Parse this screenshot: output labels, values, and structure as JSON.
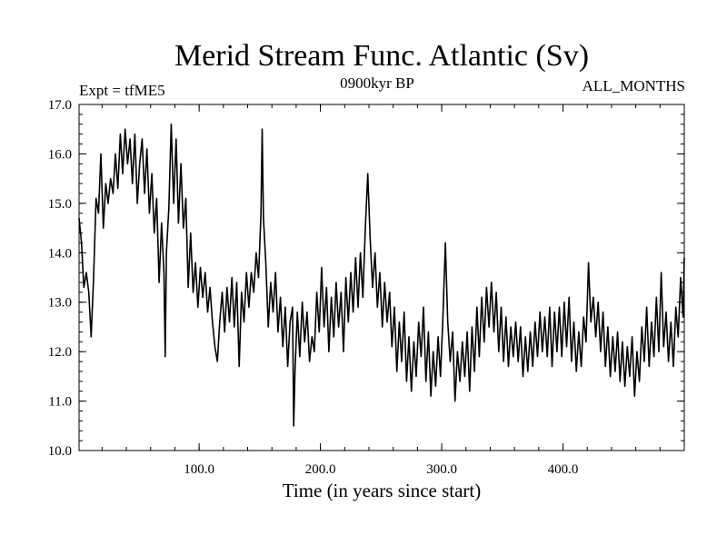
{
  "chart_data": {
    "type": "line",
    "title": "Merid Stream Func. Atlantic (Sv)",
    "subtitle_left": "Expt = tfME5",
    "subtitle_center": "0900kyr BP",
    "subtitle_right": "ALL_MONTHS",
    "xlabel": "Time (in years since start)",
    "ylabel": "",
    "xlim": [
      1,
      500
    ],
    "ylim": [
      10.0,
      17.0
    ],
    "x_ticks": [
      100,
      200,
      300,
      400
    ],
    "x_tick_labels": [
      "100.0",
      "200.0",
      "300.0",
      "400.0"
    ],
    "y_ticks": [
      10,
      11,
      12,
      13,
      14,
      15,
      16,
      17
    ],
    "y_tick_labels": [
      "10.0",
      "11.0",
      "12.0",
      "13.0",
      "14.0",
      "15.0",
      "16.0",
      "17.0"
    ],
    "grid": false,
    "line_color": "#000000",
    "series": [
      {
        "name": "Merid Stream Func. Atlantic",
        "control_points": [
          [
            1,
            14.7
          ],
          [
            3,
            14.2
          ],
          [
            5,
            13.3
          ],
          [
            7,
            13.6
          ],
          [
            9,
            13.2
          ],
          [
            11,
            12.3
          ],
          [
            13,
            13.5
          ],
          [
            15,
            15.1
          ],
          [
            17,
            14.8
          ],
          [
            19,
            16.0
          ],
          [
            21,
            14.5
          ],
          [
            23,
            15.4
          ],
          [
            25,
            15.0
          ],
          [
            27,
            15.5
          ],
          [
            29,
            15.2
          ],
          [
            31,
            16.0
          ],
          [
            33,
            15.3
          ],
          [
            35,
            16.4
          ],
          [
            37,
            15.6
          ],
          [
            39,
            16.5
          ],
          [
            41,
            15.8
          ],
          [
            43,
            16.3
          ],
          [
            45,
            15.4
          ],
          [
            47,
            16.4
          ],
          [
            49,
            15.0
          ],
          [
            51,
            15.8
          ],
          [
            53,
            16.3
          ],
          [
            55,
            15.2
          ],
          [
            57,
            16.1
          ],
          [
            59,
            14.8
          ],
          [
            61,
            15.6
          ],
          [
            63,
            14.4
          ],
          [
            65,
            15.1
          ],
          [
            67,
            13.4
          ],
          [
            69,
            14.6
          ],
          [
            71,
            13.6
          ],
          [
            72,
            11.9
          ],
          [
            73,
            14.0
          ],
          [
            75,
            14.9
          ],
          [
            77,
            16.6
          ],
          [
            79,
            15.0
          ],
          [
            81,
            16.3
          ],
          [
            83,
            14.6
          ],
          [
            85,
            15.8
          ],
          [
            87,
            14.5
          ],
          [
            89,
            15.1
          ],
          [
            91,
            13.3
          ],
          [
            93,
            14.4
          ],
          [
            95,
            13.2
          ],
          [
            97,
            13.8
          ],
          [
            99,
            12.9
          ],
          [
            101,
            13.7
          ],
          [
            103,
            13.1
          ],
          [
            105,
            13.6
          ],
          [
            107,
            12.8
          ],
          [
            109,
            13.3
          ],
          [
            111,
            12.6
          ],
          [
            113,
            12.1
          ],
          [
            115,
            11.8
          ],
          [
            117,
            12.6
          ],
          [
            119,
            13.2
          ],
          [
            121,
            12.4
          ],
          [
            123,
            13.3
          ],
          [
            125,
            12.6
          ],
          [
            127,
            13.5
          ],
          [
            129,
            12.5
          ],
          [
            131,
            13.4
          ],
          [
            133,
            11.7
          ],
          [
            135,
            13.2
          ],
          [
            137,
            12.6
          ],
          [
            139,
            13.6
          ],
          [
            141,
            12.9
          ],
          [
            143,
            13.6
          ],
          [
            145,
            13.2
          ],
          [
            147,
            14.0
          ],
          [
            149,
            13.5
          ],
          [
            151,
            14.8
          ],
          [
            152,
            16.5
          ],
          [
            153,
            14.7
          ],
          [
            155,
            13.8
          ],
          [
            157,
            12.5
          ],
          [
            159,
            13.4
          ],
          [
            161,
            12.8
          ],
          [
            163,
            13.6
          ],
          [
            165,
            12.4
          ],
          [
            167,
            13.1
          ],
          [
            169,
            12.1
          ],
          [
            171,
            12.9
          ],
          [
            173,
            11.7
          ],
          [
            175,
            12.6
          ],
          [
            177,
            12.9
          ],
          [
            178,
            10.5
          ],
          [
            179,
            11.6
          ],
          [
            181,
            12.8
          ],
          [
            183,
            11.9
          ],
          [
            185,
            13.0
          ],
          [
            187,
            12.2
          ],
          [
            189,
            12.8
          ],
          [
            191,
            11.8
          ],
          [
            193,
            12.3
          ],
          [
            195,
            12.0
          ],
          [
            197,
            13.2
          ],
          [
            199,
            12.4
          ],
          [
            201,
            13.7
          ],
          [
            203,
            12.5
          ],
          [
            205,
            13.3
          ],
          [
            207,
            12.0
          ],
          [
            209,
            13.1
          ],
          [
            211,
            12.3
          ],
          [
            213,
            13.4
          ],
          [
            215,
            12.5
          ],
          [
            217,
            13.2
          ],
          [
            219,
            12.0
          ],
          [
            221,
            13.5
          ],
          [
            223,
            12.6
          ],
          [
            225,
            13.6
          ],
          [
            227,
            12.8
          ],
          [
            229,
            13.9
          ],
          [
            231,
            12.9
          ],
          [
            233,
            14.0
          ],
          [
            235,
            13.1
          ],
          [
            237,
            14.5
          ],
          [
            239,
            15.6
          ],
          [
            241,
            14.3
          ],
          [
            243,
            13.3
          ],
          [
            245,
            14.0
          ],
          [
            247,
            12.9
          ],
          [
            249,
            13.6
          ],
          [
            251,
            12.5
          ],
          [
            253,
            13.4
          ],
          [
            255,
            12.6
          ],
          [
            257,
            13.2
          ],
          [
            259,
            12.1
          ],
          [
            261,
            12.9
          ],
          [
            263,
            11.6
          ],
          [
            265,
            12.6
          ],
          [
            267,
            11.8
          ],
          [
            269,
            12.8
          ],
          [
            271,
            11.4
          ],
          [
            273,
            12.3
          ],
          [
            275,
            11.2
          ],
          [
            277,
            12.2
          ],
          [
            279,
            11.5
          ],
          [
            281,
            12.6
          ],
          [
            283,
            11.9
          ],
          [
            285,
            12.9
          ],
          [
            287,
            11.4
          ],
          [
            289,
            12.4
          ],
          [
            291,
            11.1
          ],
          [
            293,
            12.0
          ],
          [
            295,
            11.3
          ],
          [
            297,
            12.3
          ],
          [
            299,
            11.5
          ],
          [
            301,
            12.7
          ],
          [
            303,
            14.2
          ],
          [
            305,
            12.6
          ],
          [
            307,
            11.8
          ],
          [
            309,
            12.4
          ],
          [
            311,
            11.0
          ],
          [
            313,
            12.0
          ],
          [
            315,
            11.4
          ],
          [
            317,
            12.2
          ],
          [
            319,
            11.5
          ],
          [
            321,
            12.4
          ],
          [
            323,
            11.2
          ],
          [
            325,
            12.5
          ],
          [
            327,
            11.6
          ],
          [
            329,
            12.9
          ],
          [
            331,
            11.9
          ],
          [
            333,
            13.1
          ],
          [
            335,
            12.2
          ],
          [
            337,
            13.3
          ],
          [
            339,
            12.5
          ],
          [
            341,
            13.4
          ],
          [
            343,
            12.4
          ],
          [
            345,
            13.2
          ],
          [
            347,
            12.0
          ],
          [
            349,
            12.9
          ],
          [
            351,
            11.8
          ],
          [
            353,
            12.7
          ],
          [
            355,
            11.7
          ],
          [
            357,
            12.5
          ],
          [
            359,
            11.9
          ],
          [
            361,
            12.6
          ],
          [
            363,
            11.8
          ],
          [
            365,
            12.5
          ],
          [
            367,
            11.5
          ],
          [
            369,
            12.3
          ],
          [
            371,
            11.6
          ],
          [
            373,
            12.4
          ],
          [
            375,
            11.7
          ],
          [
            377,
            12.6
          ],
          [
            379,
            11.9
          ],
          [
            381,
            12.8
          ],
          [
            383,
            12.0
          ],
          [
            385,
            12.7
          ],
          [
            387,
            11.9
          ],
          [
            389,
            12.9
          ],
          [
            391,
            11.7
          ],
          [
            393,
            12.8
          ],
          [
            395,
            12.0
          ],
          [
            397,
            12.9
          ],
          [
            399,
            11.9
          ],
          [
            401,
            13.0
          ],
          [
            403,
            12.1
          ],
          [
            405,
            13.1
          ],
          [
            407,
            11.8
          ],
          [
            409,
            12.6
          ],
          [
            411,
            11.6
          ],
          [
            413,
            12.4
          ],
          [
            415,
            11.7
          ],
          [
            417,
            12.7
          ],
          [
            419,
            12.2
          ],
          [
            421,
            13.8
          ],
          [
            423,
            12.6
          ],
          [
            425,
            13.1
          ],
          [
            427,
            12.3
          ],
          [
            429,
            13.0
          ],
          [
            431,
            12.0
          ],
          [
            433,
            12.8
          ],
          [
            435,
            11.7
          ],
          [
            437,
            12.5
          ],
          [
            439,
            11.5
          ],
          [
            441,
            12.3
          ],
          [
            443,
            11.6
          ],
          [
            445,
            12.4
          ],
          [
            447,
            11.4
          ],
          [
            449,
            12.2
          ],
          [
            451,
            11.3
          ],
          [
            453,
            12.1
          ],
          [
            455,
            11.5
          ],
          [
            457,
            12.3
          ],
          [
            459,
            11.1
          ],
          [
            461,
            12.0
          ],
          [
            463,
            11.4
          ],
          [
            465,
            12.5
          ],
          [
            467,
            11.8
          ],
          [
            469,
            12.9
          ],
          [
            471,
            11.7
          ],
          [
            473,
            12.6
          ],
          [
            475,
            11.9
          ],
          [
            477,
            13.1
          ],
          [
            479,
            12.0
          ],
          [
            481,
            13.6
          ],
          [
            483,
            12.1
          ],
          [
            485,
            12.8
          ],
          [
            487,
            11.8
          ],
          [
            489,
            12.6
          ],
          [
            491,
            11.7
          ],
          [
            493,
            12.9
          ],
          [
            495,
            12.3
          ],
          [
            497,
            13.5
          ],
          [
            499,
            12.7
          ],
          [
            500,
            13.9
          ]
        ]
      }
    ]
  }
}
